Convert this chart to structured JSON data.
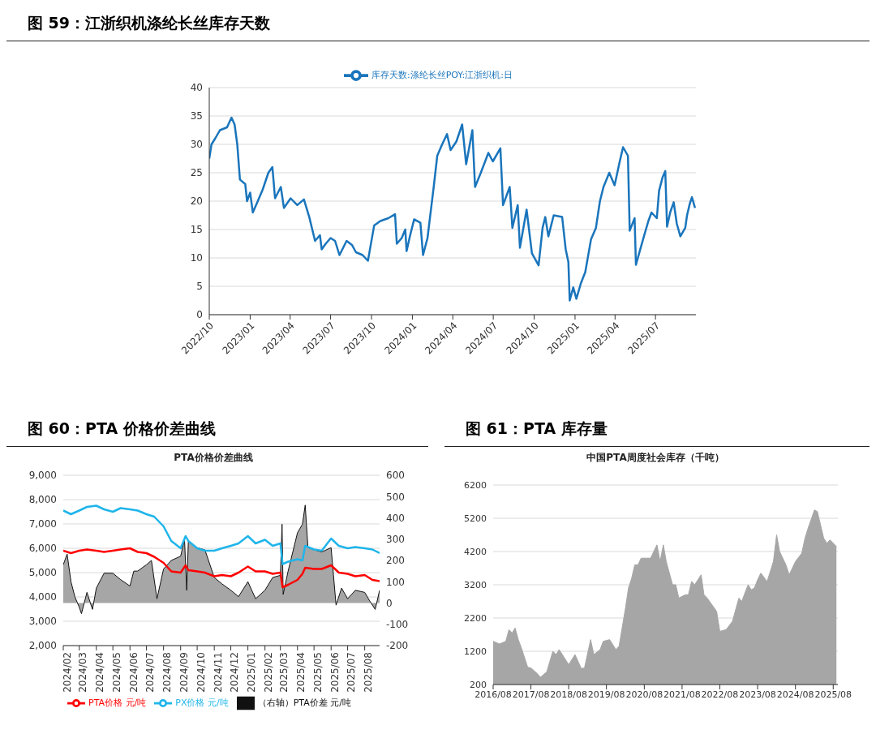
{
  "chart_data": [
    {
      "type": "line",
      "title": "图 59：江浙织机涤纶长丝库存天数",
      "legend": "top",
      "grid": "y",
      "xlim": [
        "2022-10-01",
        "2025-09-30"
      ],
      "xticks": [
        {
          "value": "2022-10-01",
          "label": "2022/10"
        },
        {
          "value": "2023-01-01",
          "label": "2023/01"
        },
        {
          "value": "2023-04-01",
          "label": "2023/04"
        },
        {
          "value": "2023-07-01",
          "label": "2023/07"
        },
        {
          "value": "2023-10-01",
          "label": "2023/10"
        },
        {
          "value": "2024-01-01",
          "label": "2024/01"
        },
        {
          "value": "2024-04-01",
          "label": "2024/04"
        },
        {
          "value": "2024-07-01",
          "label": "2024/07"
        },
        {
          "value": "2024-10-01",
          "label": "2024/10"
        },
        {
          "value": "2025-01-01",
          "label": "2025/01"
        },
        {
          "value": "2025-04-01",
          "label": "2025/04"
        },
        {
          "value": "2025-07-01",
          "label": "2025/07"
        }
      ],
      "ylim": [
        0,
        40
      ],
      "yticks": [
        0,
        5,
        10,
        15,
        20,
        25,
        30,
        35,
        40
      ],
      "x": [
        "2022-10-01",
        "2022-10-06",
        "2022-10-14",
        "2022-10-25",
        "2022-11-10",
        "2022-11-20",
        "2022-11-27",
        "2022-12-03",
        "2022-12-09",
        "2022-12-21",
        "2022-12-25",
        "2023-01-01",
        "2023-01-07",
        "2023-01-17",
        "2023-01-29",
        "2023-02-11",
        "2023-02-20",
        "2023-02-26",
        "2023-03-11",
        "2023-03-18",
        "2023-04-02",
        "2023-04-17",
        "2023-05-02",
        "2023-05-14",
        "2023-05-27",
        "2023-06-07",
        "2023-06-11",
        "2023-06-20",
        "2023-07-01",
        "2023-07-11",
        "2023-07-21",
        "2023-08-06",
        "2023-08-18",
        "2023-08-27",
        "2023-09-11",
        "2023-09-23",
        "2023-10-07",
        "2023-10-21",
        "2023-11-08",
        "2023-11-23",
        "2023-11-27",
        "2023-12-08",
        "2023-12-16",
        "2023-12-19",
        "2023-12-27",
        "2024-01-05",
        "2024-01-19",
        "2024-01-25",
        "2024-02-04",
        "2024-02-18",
        "2024-02-26",
        "2024-03-08",
        "2024-03-19",
        "2024-03-27",
        "2024-04-09",
        "2024-04-22",
        "2024-05-01",
        "2024-05-15",
        "2024-05-21",
        "2024-06-03",
        "2024-06-20",
        "2024-06-30",
        "2024-07-17",
        "2024-07-23",
        "2024-08-07",
        "2024-08-13",
        "2024-08-25",
        "2024-08-30",
        "2024-09-14",
        "2024-09-26",
        "2024-10-11",
        "2024-10-20",
        "2024-10-26",
        "2024-11-02",
        "2024-11-14",
        "2024-12-03",
        "2024-12-11",
        "2024-12-17",
        "2024-12-20",
        "2024-12-28",
        "2025-01-04",
        "2025-01-14",
        "2025-01-24",
        "2025-02-06",
        "2025-02-17",
        "2025-02-26",
        "2025-03-06",
        "2025-03-19",
        "2025-03-31",
        "2025-04-11",
        "2025-04-19",
        "2025-04-30",
        "2025-05-04",
        "2025-05-15",
        "2025-05-18",
        "2025-05-27",
        "2025-06-05",
        "2025-06-15",
        "2025-06-22",
        "2025-07-04",
        "2025-07-09",
        "2025-07-17",
        "2025-07-23",
        "2025-07-27",
        "2025-08-03",
        "2025-08-11",
        "2025-08-18",
        "2025-08-26",
        "2025-09-06",
        "2025-09-10",
        "2025-09-16",
        "2025-09-21",
        "2025-09-28"
      ],
      "series": [
        {
          "name": "库存天数:涤纶长丝POY:江浙织机:日",
          "color": "#1a75bc",
          "values": [
            27.5,
            30,
            31,
            32.5,
            33,
            34.7,
            33.5,
            30,
            23.8,
            23,
            20,
            21.5,
            18,
            19.8,
            22,
            25,
            26,
            20.5,
            22.5,
            18.8,
            20.5,
            19.3,
            20.3,
            17.2,
            13,
            14,
            11.5,
            12.5,
            13.5,
            13,
            10.5,
            13,
            12.3,
            11,
            10.5,
            9.5,
            15.7,
            16.5,
            17,
            17.7,
            12.5,
            13.5,
            15,
            11.2,
            14,
            16.8,
            16.2,
            10.5,
            13.5,
            22.5,
            28,
            30,
            31.8,
            29,
            30.5,
            33.5,
            26.5,
            32.5,
            22.5,
            25,
            28.5,
            27,
            29.3,
            19.3,
            22.5,
            15.3,
            19.3,
            11.8,
            18.5,
            10.8,
            8.7,
            15.3,
            17.2,
            13.8,
            17.5,
            17.2,
            11.5,
            9.3,
            2.5,
            4.8,
            2.8,
            5.5,
            7.5,
            13.3,
            15.3,
            20,
            22.5,
            25,
            22.8,
            26.8,
            29.5,
            28,
            14.8,
            17,
            8.8,
            11.3,
            13.8,
            16.5,
            18,
            17,
            21.8,
            24.2,
            25.3,
            15.5,
            18,
            19.8,
            16,
            13.8,
            15.3,
            17.5,
            19.5,
            20.7,
            18.8
          ]
        }
      ]
    },
    {
      "type": "line",
      "title": "图 60：PTA 价格价差曲线",
      "subtitle": "PTA价格价差曲线",
      "legend": "bottom",
      "grid": "y",
      "xlim": [
        "2024-02-01",
        "2025-08-28"
      ],
      "xticks": [
        {
          "value": "2024-02-01",
          "label": "2024/02"
        },
        {
          "value": "2024-03-01",
          "label": "2024/03"
        },
        {
          "value": "2024-04-01",
          "label": "2024/04"
        },
        {
          "value": "2024-05-01",
          "label": "2024/05"
        },
        {
          "value": "2024-06-01",
          "label": "2024/06"
        },
        {
          "value": "2024-07-01",
          "label": "2024/07"
        },
        {
          "value": "2024-08-01",
          "label": "2024/08"
        },
        {
          "value": "2024-09-01",
          "label": "2024/09"
        },
        {
          "value": "2024-10-01",
          "label": "2024/10"
        },
        {
          "value": "2024-11-01",
          "label": "2024/11"
        },
        {
          "value": "2024-12-01",
          "label": "2024/12"
        },
        {
          "value": "2025-01-01",
          "label": "2025/01"
        },
        {
          "value": "2025-02-01",
          "label": "2025/02"
        },
        {
          "value": "2025-03-01",
          "label": "2025/03"
        },
        {
          "value": "2025-04-01",
          "label": "2025/04"
        },
        {
          "value": "2025-05-01",
          "label": "2025/05"
        },
        {
          "value": "2025-06-01",
          "label": "2025/06"
        },
        {
          "value": "2025-07-01",
          "label": "2025/07"
        },
        {
          "value": "2025-08-01",
          "label": "2025/08"
        }
      ],
      "ylim": [
        2000,
        9000
      ],
      "yticks": [
        {
          "value": 2000,
          "label": "2,000"
        },
        {
          "value": 3000,
          "label": "3,000"
        },
        {
          "value": 4000,
          "label": "4,000"
        },
        {
          "value": 5000,
          "label": "5,000"
        },
        {
          "value": 6000,
          "label": "6,000"
        },
        {
          "value": 7000,
          "label": "7,000"
        },
        {
          "value": 8000,
          "label": "8,000"
        },
        {
          "value": 9000,
          "label": "9,000"
        }
      ],
      "y2lim": [
        -200,
        600
      ],
      "y2ticks": [
        -200,
        -100,
        0,
        100,
        200,
        300,
        400,
        500,
        600
      ],
      "x": [
        "2024-02-01",
        "2024-02-15",
        "2024-03-01",
        "2024-03-15",
        "2024-04-01",
        "2024-04-15",
        "2024-05-01",
        "2024-05-15",
        "2024-06-01",
        "2024-06-15",
        "2024-07-01",
        "2024-07-15",
        "2024-08-01",
        "2024-08-15",
        "2024-09-01",
        "2024-09-10",
        "2024-09-15",
        "2024-10-01",
        "2024-10-15",
        "2024-11-01",
        "2024-11-15",
        "2024-12-01",
        "2024-12-15",
        "2025-01-01",
        "2025-01-15",
        "2025-02-01",
        "2025-02-15",
        "2025-03-01",
        "2025-03-05",
        "2025-03-15",
        "2025-04-01",
        "2025-04-10",
        "2025-04-15",
        "2025-05-01",
        "2025-05-15",
        "2025-06-01",
        "2025-06-15",
        "2025-07-01",
        "2025-07-15",
        "2025-08-01",
        "2025-08-15",
        "2025-08-28"
      ],
      "series": [
        {
          "name": "（右轴）PTA价差 元/吨",
          "type": "area",
          "axis": "y2",
          "color": "#a6a6a6",
          "x": [
            "2024-02-01",
            "2024-02-08",
            "2024-02-15",
            "2024-02-22",
            "2024-03-01",
            "2024-03-05",
            "2024-03-15",
            "2024-03-25",
            "2024-04-01",
            "2024-04-15",
            "2024-05-01",
            "2024-05-15",
            "2024-06-01",
            "2024-06-08",
            "2024-06-15",
            "2024-07-01",
            "2024-07-10",
            "2024-07-20",
            "2024-08-01",
            "2024-08-15",
            "2024-09-01",
            "2024-09-08",
            "2024-09-12",
            "2024-09-15",
            "2024-10-01",
            "2024-10-15",
            "2024-11-01",
            "2024-11-15",
            "2024-12-01",
            "2024-12-15",
            "2025-01-01",
            "2025-01-15",
            "2025-02-01",
            "2025-02-15",
            "2025-03-01",
            "2025-03-04",
            "2025-03-06",
            "2025-03-15",
            "2025-04-01",
            "2025-04-10",
            "2025-04-15",
            "2025-04-20",
            "2025-05-01",
            "2025-05-15",
            "2025-06-01",
            "2025-06-10",
            "2025-06-20",
            "2025-07-01",
            "2025-07-15",
            "2025-08-01",
            "2025-08-10",
            "2025-08-20",
            "2025-08-28"
          ],
          "values": [
            180,
            230,
            100,
            30,
            -20,
            -50,
            50,
            -30,
            70,
            140,
            140,
            110,
            80,
            150,
            150,
            180,
            200,
            20,
            160,
            200,
            220,
            300,
            60,
            290,
            260,
            250,
            120,
            90,
            60,
            30,
            100,
            20,
            60,
            120,
            130,
            370,
            40,
            150,
            330,
            370,
            460,
            260,
            250,
            240,
            260,
            -10,
            70,
            20,
            60,
            50,
            10,
            -30,
            60
          ]
        },
        {
          "name": "PX价格 元/吨",
          "color": "#1fb5ea",
          "values": [
            7550,
            7400,
            7550,
            7700,
            7750,
            7600,
            7500,
            7650,
            7600,
            7550,
            7400,
            7300,
            6900,
            6300,
            6000,
            6500,
            6300,
            6000,
            5900,
            5900,
            6000,
            6100,
            6200,
            6500,
            6200,
            6350,
            6100,
            6200,
            5350,
            5450,
            5550,
            5500,
            6100,
            5950,
            5900,
            6400,
            6100,
            6000,
            6050,
            6000,
            5950,
            5800
          ]
        },
        {
          "name": "PTA价格 元/吨",
          "color": "#ff0000",
          "values": [
            5900,
            5800,
            5900,
            5950,
            5900,
            5850,
            5900,
            5950,
            6000,
            5850,
            5800,
            5650,
            5400,
            5050,
            5000,
            5300,
            5100,
            5050,
            5000,
            4850,
            4900,
            4850,
            5000,
            5250,
            5050,
            5050,
            4950,
            5000,
            4400,
            4500,
            4700,
            4950,
            5200,
            5150,
            5150,
            5300,
            5000,
            4950,
            4850,
            4900,
            4700,
            4650
          ]
        }
      ]
    },
    {
      "type": "area",
      "title": "图 61：PTA 库存量",
      "subtitle": "中国PTA周度社会库存（千吨）",
      "grid": "y",
      "xlim": [
        "2016-08-01",
        "2025-09-15"
      ],
      "xticks": [
        {
          "value": "2016-08-01",
          "label": "2016/08"
        },
        {
          "value": "2017-08-01",
          "label": "2017/08"
        },
        {
          "value": "2018-08-01",
          "label": "2018/08"
        },
        {
          "value": "2019-08-01",
          "label": "2019/08"
        },
        {
          "value": "2020-08-01",
          "label": "2020/08"
        },
        {
          "value": "2021-08-01",
          "label": "2021/08"
        },
        {
          "value": "2022-08-01",
          "label": "2022/08"
        },
        {
          "value": "2023-08-01",
          "label": "2023/08"
        },
        {
          "value": "2024-08-01",
          "label": "2024/08"
        },
        {
          "value": "2025-08-01",
          "label": "2025/08"
        }
      ],
      "ylim": [
        200,
        6200
      ],
      "yticks": [
        200,
        1200,
        2200,
        3200,
        4200,
        5200,
        6200
      ],
      "x": [
        "2016-08-01",
        "2016-10-01",
        "2016-12-01",
        "2017-01-01",
        "2017-02-01",
        "2017-03-01",
        "2017-04-01",
        "2017-05-01",
        "2017-07-01",
        "2017-08-01",
        "2017-10-01",
        "2017-11-01",
        "2018-01-01",
        "2018-03-01",
        "2018-04-01",
        "2018-05-01",
        "2018-08-01",
        "2018-10-01",
        "2018-12-01",
        "2019-01-01",
        "2019-03-01",
        "2019-04-01",
        "2019-06-01",
        "2019-07-01",
        "2019-09-01",
        "2019-11-01",
        "2019-12-01",
        "2020-02-01",
        "2020-03-01",
        "2020-04-01",
        "2020-05-01",
        "2020-06-01",
        "2020-07-01",
        "2020-10-01",
        "2020-12-01",
        "2021-01-01",
        "2021-02-01",
        "2021-03-01",
        "2021-05-01",
        "2021-06-01",
        "2021-07-01",
        "2021-09-01",
        "2021-10-01",
        "2021-11-01",
        "2021-12-01",
        "2022-02-01",
        "2022-03-01",
        "2022-04-01",
        "2022-07-01",
        "2022-08-01",
        "2022-10-01",
        "2022-12-01",
        "2023-02-01",
        "2023-03-01",
        "2023-05-01",
        "2023-06-01",
        "2023-07-01",
        "2023-08-01",
        "2023-09-01",
        "2023-11-01",
        "2024-01-01",
        "2024-02-01",
        "2024-03-01",
        "2024-05-01",
        "2024-06-01",
        "2024-08-01",
        "2024-10-01",
        "2024-11-01",
        "2024-12-01",
        "2025-02-01",
        "2025-03-01",
        "2025-05-01",
        "2025-06-01",
        "2025-07-01",
        "2025-09-01"
      ],
      "series": [
        {
          "color": "#a6a6a6",
          "values": [
            1500,
            1420,
            1500,
            1850,
            1750,
            1900,
            1550,
            1300,
            720,
            700,
            530,
            420,
            580,
            1200,
            1100,
            1250,
            800,
            1100,
            680,
            700,
            1550,
            1100,
            1250,
            1500,
            1550,
            1250,
            1350,
            2500,
            3100,
            3400,
            3800,
            3800,
            4000,
            4000,
            4400,
            3900,
            4400,
            3900,
            3200,
            3200,
            2800,
            2900,
            2900,
            3300,
            3200,
            3500,
            2900,
            2800,
            2400,
            1800,
            1850,
            2100,
            2800,
            2700,
            3200,
            3050,
            3100,
            3350,
            3550,
            3300,
            3900,
            4700,
            4200,
            3800,
            3500,
            3900,
            4150,
            4600,
            4900,
            5450,
            5400,
            4600,
            4450,
            4550,
            4350
          ]
        }
      ]
    }
  ]
}
